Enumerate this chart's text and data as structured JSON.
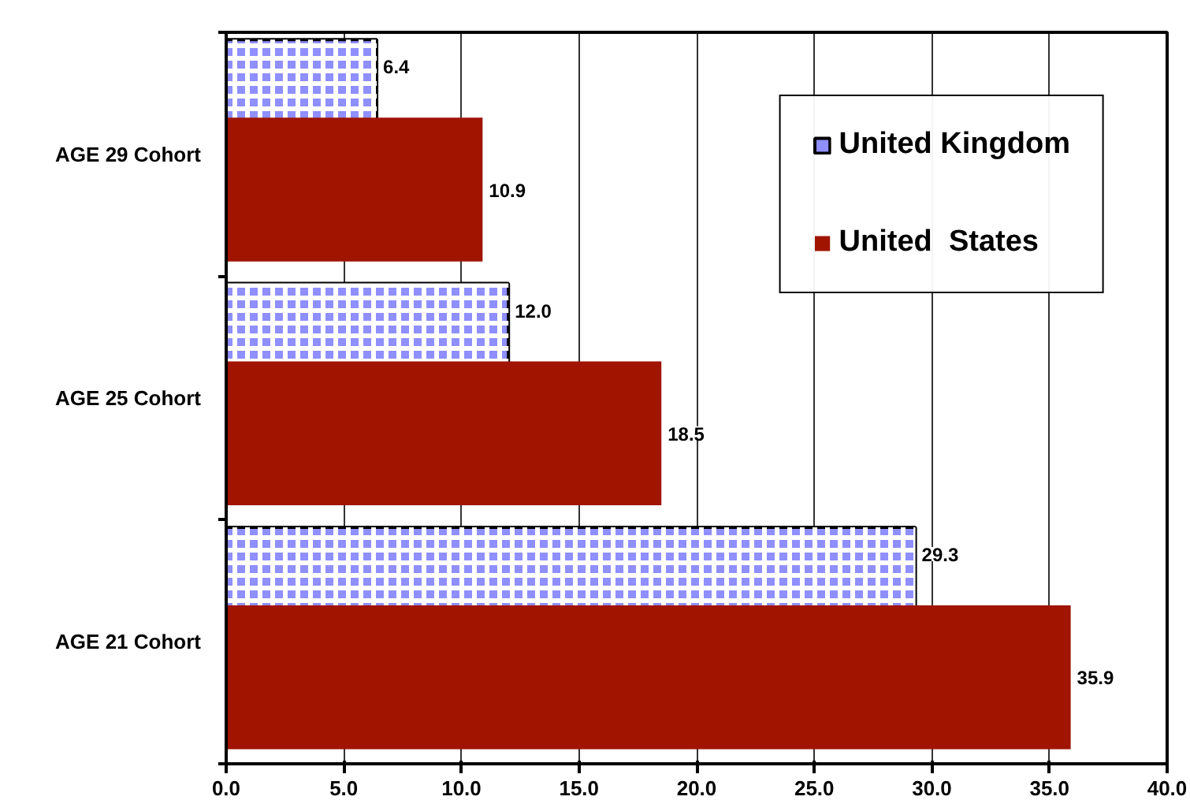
{
  "chart_data": {
    "type": "bar",
    "orientation": "horizontal",
    "categories": [
      "AGE 29 Cohort",
      "AGE 25 Cohort",
      "AGE 21 Cohort"
    ],
    "series": [
      {
        "name": "United Kingdom",
        "color": "#8f8fff",
        "values": [
          6.4,
          12.0,
          29.3
        ],
        "value_labels": [
          "6.4",
          "12.0",
          "29.3"
        ]
      },
      {
        "name": "United  States",
        "color": "#a01400",
        "values": [
          10.9,
          18.5,
          35.9
        ],
        "value_labels": [
          "10.9",
          "18.5",
          "35.9"
        ]
      }
    ],
    "xlim": [
      0,
      40
    ],
    "xticks": [
      {
        "value": 0,
        "label": "0.0"
      },
      {
        "value": 5,
        "label": "5.0"
      },
      {
        "value": 10,
        "label": "10.0"
      },
      {
        "value": 15,
        "label": "15.0"
      },
      {
        "value": 20,
        "label": "20.0"
      },
      {
        "value": 25,
        "label": "25.0"
      },
      {
        "value": 30,
        "label": "30.0"
      },
      {
        "value": 35,
        "label": "35.0"
      },
      {
        "value": 40,
        "label": "40.0"
      }
    ],
    "grid": "x",
    "legend": "top right"
  }
}
